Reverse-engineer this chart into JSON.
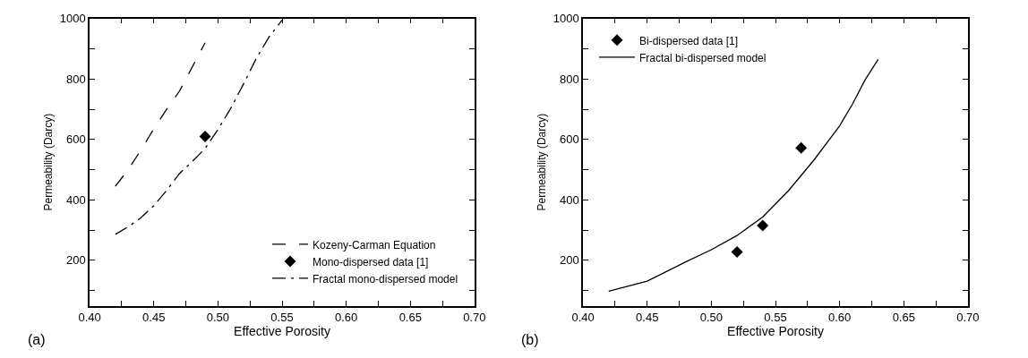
{
  "chart_data": [
    {
      "type": "line",
      "xlabel": "Effective Porosity",
      "ylabel": "Permeability (Darcy)",
      "annotations": [
        "(a)"
      ],
      "xlim": [
        0.4,
        0.7
      ],
      "ylim": [
        50,
        1000
      ],
      "xticks": [
        {
          "value": 0.4,
          "label": "0.40"
        },
        {
          "value": 0.425,
          "label": null
        },
        {
          "value": 0.45,
          "label": "0.45"
        },
        {
          "value": 0.475,
          "label": null
        },
        {
          "value": 0.5,
          "label": "0.50"
        },
        {
          "value": 0.525,
          "label": null
        },
        {
          "value": 0.55,
          "label": "0.55"
        },
        {
          "value": 0.575,
          "label": null
        },
        {
          "value": 0.6,
          "label": "0.60"
        },
        {
          "value": 0.625,
          "label": null
        },
        {
          "value": 0.65,
          "label": "0.65"
        },
        {
          "value": 0.675,
          "label": null
        },
        {
          "value": 0.7,
          "label": "0.70"
        }
      ],
      "yticks": [
        {
          "value": 100,
          "label": null
        },
        200,
        {
          "value": 300,
          "label": null
        },
        400,
        {
          "value": 500,
          "label": null
        },
        600,
        {
          "value": 700,
          "label": null
        },
        800,
        {
          "value": 900,
          "label": null
        },
        1000
      ],
      "legend": "bottom right",
      "series": [
        {
          "name": "Kozeny-Carman Equation",
          "line_style": "dashed",
          "color": "#000000",
          "x": [
            0.42,
            0.43,
            0.44,
            0.45,
            0.46,
            0.47,
            0.48,
            0.49
          ],
          "values": [
            445,
            500,
            565,
            635,
            700,
            760,
            840,
            920
          ]
        },
        {
          "name": "Mono-dispersed data [1]",
          "type": "scatter",
          "marker": "diamond",
          "color": "#000000",
          "x": [
            0.49
          ],
          "values": [
            610
          ]
        },
        {
          "name": "Fractal mono-dispersed model",
          "line_style": "dashdot",
          "color": "#000000",
          "x": [
            0.42,
            0.43,
            0.44,
            0.45,
            0.46,
            0.47,
            0.48,
            0.49,
            0.5,
            0.51,
            0.52,
            0.53,
            0.54,
            0.55
          ],
          "values": [
            286,
            311,
            341,
            381,
            431,
            487,
            527,
            570,
            633,
            703,
            784,
            869,
            940,
            995
          ]
        }
      ]
    },
    {
      "type": "line",
      "xlabel": "Effective Porosity",
      "ylabel": "Permeability (Darcy)",
      "annotations": [
        "(b)"
      ],
      "xlim": [
        0.4,
        0.7
      ],
      "ylim": [
        50,
        1000
      ],
      "xticks": [
        {
          "value": 0.4,
          "label": "0.40"
        },
        {
          "value": 0.425,
          "label": null
        },
        {
          "value": 0.45,
          "label": "0.45"
        },
        {
          "value": 0.475,
          "label": null
        },
        {
          "value": 0.5,
          "label": "0.50"
        },
        {
          "value": 0.525,
          "label": null
        },
        {
          "value": 0.55,
          "label": "0.55"
        },
        {
          "value": 0.575,
          "label": null
        },
        {
          "value": 0.6,
          "label": "0.60"
        },
        {
          "value": 0.625,
          "label": null
        },
        {
          "value": 0.65,
          "label": "0.65"
        },
        {
          "value": 0.675,
          "label": null
        },
        {
          "value": 0.7,
          "label": "0.70"
        }
      ],
      "yticks": [
        {
          "value": 100,
          "label": null
        },
        200,
        {
          "value": 300,
          "label": null
        },
        400,
        {
          "value": 500,
          "label": null
        },
        600,
        {
          "value": 700,
          "label": null
        },
        800,
        {
          "value": 900,
          "label": null
        },
        1000
      ],
      "legend": "top left",
      "series": [
        {
          "name": "Bi-dispersed data [1]",
          "type": "scatter",
          "marker": "diamond",
          "color": "#000000",
          "x": [
            0.52,
            0.54,
            0.57
          ],
          "values": [
            228,
            315,
            572
          ]
        },
        {
          "name": "Fractal bi-dispersed model",
          "line_style": "solid",
          "color": "#000000",
          "x": [
            0.42,
            0.45,
            0.48,
            0.5,
            0.52,
            0.54,
            0.56,
            0.58,
            0.6,
            0.61,
            0.62,
            0.63
          ],
          "values": [
            98,
            131,
            195,
            235,
            282,
            343,
            430,
            532,
            645,
            717,
            798,
            865
          ]
        }
      ]
    }
  ]
}
